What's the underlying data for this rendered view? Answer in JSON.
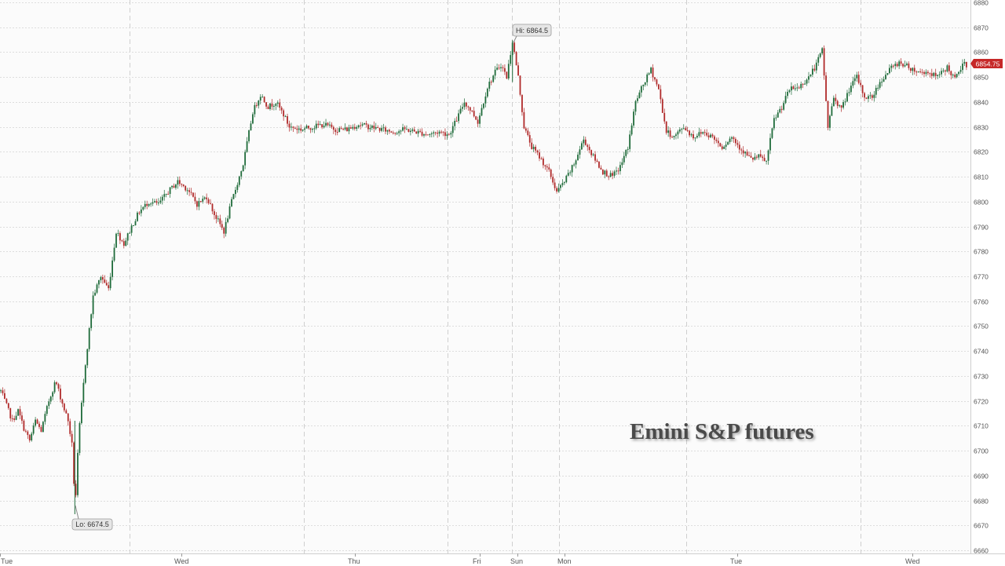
{
  "chart_data": {
    "type": "candlestick",
    "title": "Emini S&P futures",
    "y_ticks": [
      6660,
      6670,
      6680,
      6690,
      6700,
      6710,
      6720,
      6730,
      6740,
      6750,
      6760,
      6770,
      6780,
      6790,
      6800,
      6810,
      6820,
      6830,
      6840,
      6850,
      6860,
      6870,
      6880
    ],
    "ylim": [
      6660,
      6880
    ],
    "x_labels": [
      "Tue",
      "Wed",
      "Thu",
      "Fri",
      "Sun",
      "Mon",
      "Tue",
      "Wed"
    ],
    "last_price": "6854.75",
    "annotations": {
      "high": "Hi: 6864.5",
      "low": "Lo: 6674.5"
    },
    "grid": true,
    "colors": {
      "up": "#1f6b3a",
      "down": "#b02a2a",
      "price_tag": "#c62828",
      "grid": "#d4d4d4"
    },
    "price_path": [
      [
        0,
        6724
      ],
      [
        0.3,
        6718
      ],
      [
        0.6,
        6712
      ],
      [
        0.9,
        6716
      ],
      [
        1.2,
        6709
      ],
      [
        1.5,
        6704
      ],
      [
        1.8,
        6712
      ],
      [
        2.1,
        6708
      ],
      [
        2.5,
        6720
      ],
      [
        2.85,
        6728
      ],
      [
        3.2,
        6719
      ],
      [
        3.5,
        6712
      ],
      [
        3.75,
        6700
      ],
      [
        3.85,
        6674.5
      ],
      [
        4.05,
        6706
      ],
      [
        4.4,
        6735
      ],
      [
        4.8,
        6762
      ],
      [
        5.2,
        6770
      ],
      [
        5.6,
        6765
      ],
      [
        6.0,
        6788
      ],
      [
        6.4,
        6783
      ],
      [
        6.8,
        6790
      ],
      [
        7.2,
        6796
      ],
      [
        7.7,
        6800
      ],
      [
        8.2,
        6799
      ],
      [
        8.7,
        6804
      ],
      [
        9.2,
        6808
      ],
      [
        9.7,
        6805
      ],
      [
        10.2,
        6799
      ],
      [
        10.7,
        6802
      ],
      [
        11.1,
        6795
      ],
      [
        11.6,
        6788
      ],
      [
        12.0,
        6800
      ],
      [
        12.6,
        6815
      ],
      [
        13.1,
        6836
      ],
      [
        13.5,
        6843
      ],
      [
        13.9,
        6838
      ],
      [
        14.3,
        6840
      ],
      [
        14.7,
        6835
      ],
      [
        15.0,
        6830
      ],
      [
        15.6,
        6829
      ],
      [
        16.2,
        6830
      ],
      [
        16.8,
        6831
      ],
      [
        17.4,
        6829
      ],
      [
        18.0,
        6829
      ],
      [
        18.6,
        6831
      ],
      [
        19.2,
        6830
      ],
      [
        19.8,
        6829
      ],
      [
        20.4,
        6828
      ],
      [
        21.0,
        6829
      ],
      [
        21.6,
        6828
      ],
      [
        22.2,
        6827
      ],
      [
        22.8,
        6828
      ],
      [
        23.3,
        6827
      ],
      [
        23.7,
        6833
      ],
      [
        24.1,
        6840
      ],
      [
        24.5,
        6836
      ],
      [
        24.8,
        6832
      ],
      [
        25.3,
        6846
      ],
      [
        25.7,
        6852
      ],
      [
        26.0,
        6855
      ],
      [
        26.3,
        6850
      ],
      [
        26.6,
        6864.5
      ],
      [
        26.9,
        6850
      ],
      [
        27.2,
        6830
      ],
      [
        27.6,
        6822
      ],
      [
        28.0,
        6818
      ],
      [
        28.5,
        6812
      ],
      [
        28.9,
        6804
      ],
      [
        29.3,
        6808
      ],
      [
        29.8,
        6815
      ],
      [
        30.3,
        6825
      ],
      [
        30.8,
        6818
      ],
      [
        31.3,
        6812
      ],
      [
        31.8,
        6810
      ],
      [
        32.2,
        6814
      ],
      [
        32.6,
        6822
      ],
      [
        33.0,
        6840
      ],
      [
        33.4,
        6847
      ],
      [
        33.8,
        6853
      ],
      [
        34.2,
        6845
      ],
      [
        34.6,
        6828
      ],
      [
        35.0,
        6826
      ],
      [
        35.5,
        6830
      ],
      [
        36.0,
        6826
      ],
      [
        36.5,
        6828
      ],
      [
        37.0,
        6826
      ],
      [
        37.5,
        6822
      ],
      [
        38.0,
        6826
      ],
      [
        38.5,
        6821
      ],
      [
        39.0,
        6817
      ],
      [
        39.4,
        6818
      ],
      [
        39.8,
        6816
      ],
      [
        40.2,
        6833
      ],
      [
        40.6,
        6838
      ],
      [
        41.0,
        6845
      ],
      [
        41.5,
        6846
      ],
      [
        42.0,
        6850
      ],
      [
        42.4,
        6855
      ],
      [
        42.7,
        6861
      ],
      [
        43.0,
        6830
      ],
      [
        43.3,
        6842
      ],
      [
        43.7,
        6837
      ],
      [
        44.1,
        6845
      ],
      [
        44.5,
        6850
      ],
      [
        44.9,
        6842
      ],
      [
        45.3,
        6842
      ],
      [
        45.7,
        6848
      ],
      [
        46.2,
        6853
      ],
      [
        46.7,
        6856
      ],
      [
        47.2,
        6854
      ],
      [
        47.7,
        6852
      ],
      [
        48.2,
        6852
      ],
      [
        48.7,
        6850
      ],
      [
        49.2,
        6854
      ],
      [
        49.6,
        6849
      ],
      [
        50.0,
        6855
      ],
      [
        50.3,
        6855
      ]
    ]
  }
}
